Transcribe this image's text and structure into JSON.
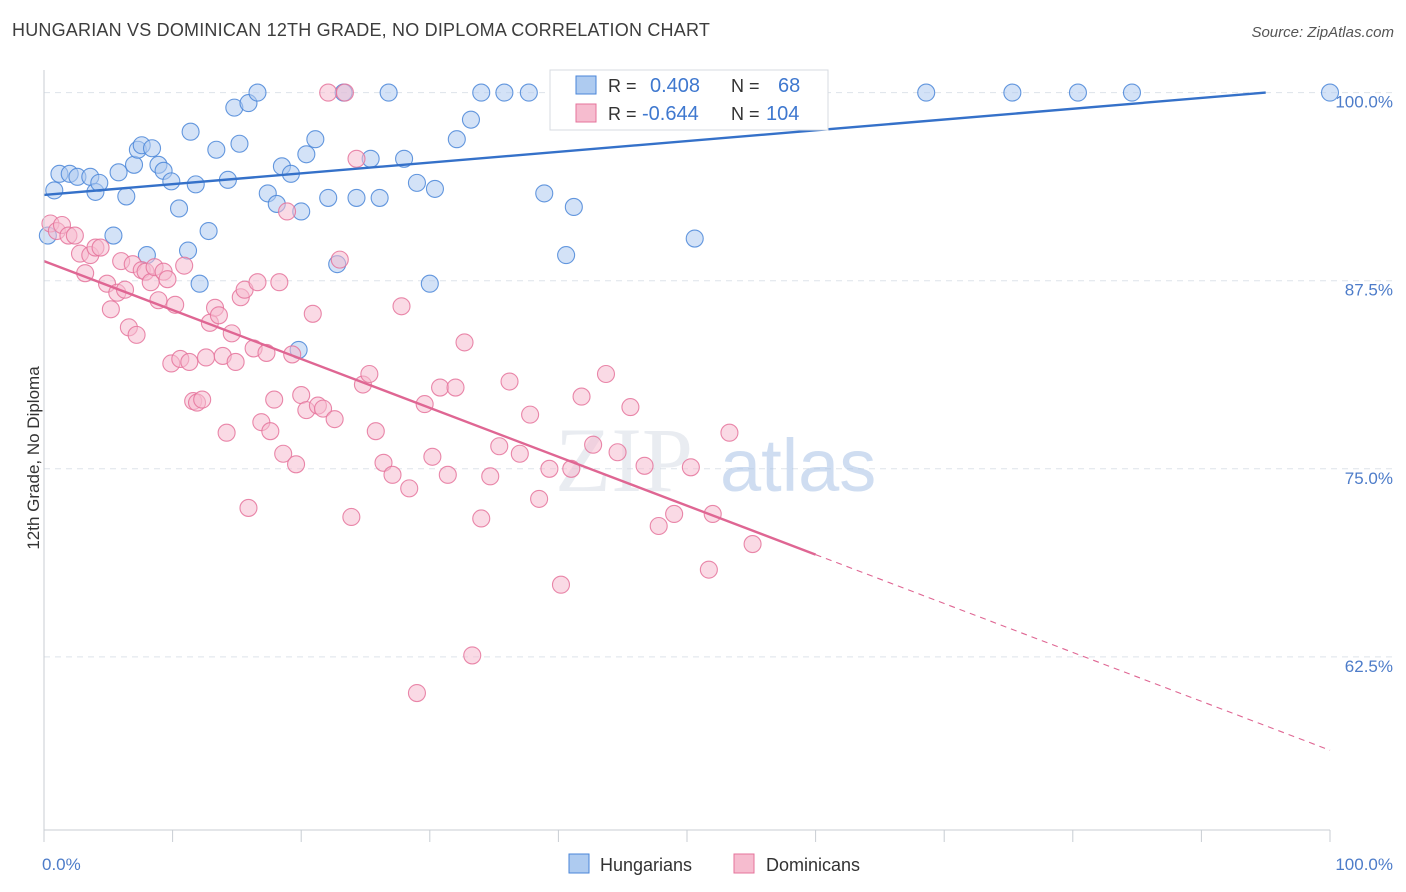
{
  "title": "HUNGARIAN VS DOMINICAN 12TH GRADE, NO DIPLOMA CORRELATION CHART",
  "source": "Source: ZipAtlas.com",
  "watermark": {
    "zip": "ZIP",
    "atlas": "atlas"
  },
  "colors": {
    "blue": "#4a86d8",
    "blue_fill": "#aecbf0",
    "blue_line": "#3571c9",
    "pink": "#e5739b",
    "pink_fill": "#f6bccf",
    "pink_line": "#df6693",
    "axis_label": "#4d7cc9",
    "grid": "#dde3ea"
  },
  "stats": [
    {
      "r_label": "R =",
      "r_value": "0.408",
      "n_label": "N =",
      "n_value": "68"
    },
    {
      "r_label": "R =",
      "r_value": "-0.644",
      "n_label": "N =",
      "n_value": "104"
    }
  ],
  "chart_data": {
    "type": "scatter",
    "title": "HUNGARIAN VS DOMINICAN 12TH GRADE, NO DIPLOMA CORRELATION CHART",
    "xlabel": "",
    "ylabel": "12th Grade, No Diploma",
    "xlim": [
      0,
      100
    ],
    "ylim": [
      51,
      101.5
    ],
    "x_tick_labels": [
      "0.0%",
      "100.0%"
    ],
    "y_ticks": [
      100.0,
      87.5,
      75.0,
      62.5
    ],
    "y_tick_labels": [
      "100.0%",
      "87.5%",
      "75.0%",
      "62.5%"
    ],
    "grid": true,
    "legend": "bottom-center",
    "series": [
      {
        "name": "Hungarians",
        "color": "#4a86d8",
        "trend": {
          "x": [
            0,
            95
          ],
          "y": [
            93.2,
            100.0
          ],
          "dashed_to": null
        },
        "points": [
          [
            0.8,
            93.5
          ],
          [
            1.2,
            94.6
          ],
          [
            2.0,
            94.6
          ],
          [
            2.6,
            94.4
          ],
          [
            3.6,
            94.4
          ],
          [
            4.0,
            93.4
          ],
          [
            4.3,
            94.0
          ],
          [
            5.4,
            90.5
          ],
          [
            5.8,
            94.7
          ],
          [
            6.4,
            93.1
          ],
          [
            7.0,
            95.2
          ],
          [
            7.3,
            96.2
          ],
          [
            7.6,
            96.5
          ],
          [
            8.0,
            89.2
          ],
          [
            8.4,
            96.3
          ],
          [
            8.9,
            95.2
          ],
          [
            9.3,
            94.8
          ],
          [
            9.9,
            94.1
          ],
          [
            10.5,
            92.3
          ],
          [
            11.2,
            89.5
          ],
          [
            11.4,
            97.4
          ],
          [
            11.8,
            93.9
          ],
          [
            12.1,
            87.3
          ],
          [
            12.8,
            90.8
          ],
          [
            13.4,
            96.2
          ],
          [
            14.3,
            94.2
          ],
          [
            14.8,
            99.0
          ],
          [
            15.2,
            96.6
          ],
          [
            15.9,
            99.3
          ],
          [
            16.6,
            100.0
          ],
          [
            17.4,
            93.3
          ],
          [
            18.1,
            92.6
          ],
          [
            18.5,
            95.1
          ],
          [
            19.2,
            94.6
          ],
          [
            19.8,
            82.9
          ],
          [
            20.0,
            92.1
          ],
          [
            20.4,
            95.9
          ],
          [
            21.1,
            96.9
          ],
          [
            22.1,
            93.0
          ],
          [
            22.8,
            88.6
          ],
          [
            23.3,
            100.0
          ],
          [
            24.3,
            93.0
          ],
          [
            25.4,
            95.6
          ],
          [
            26.1,
            93.0
          ],
          [
            26.8,
            100.0
          ],
          [
            28.0,
            95.6
          ],
          [
            29.0,
            94.0
          ],
          [
            30.0,
            87.3
          ],
          [
            30.4,
            93.6
          ],
          [
            32.1,
            96.9
          ],
          [
            33.2,
            98.2
          ],
          [
            34.0,
            100.0
          ],
          [
            35.8,
            100.0
          ],
          [
            37.7,
            100.0
          ],
          [
            38.9,
            93.3
          ],
          [
            40.6,
            89.2
          ],
          [
            41.2,
            92.4
          ],
          [
            42.9,
            100.0
          ],
          [
            45.9,
            100.0
          ],
          [
            50.6,
            90.3
          ],
          [
            53.6,
            100.0
          ],
          [
            57.3,
            100.0
          ],
          [
            68.6,
            100.0
          ],
          [
            75.3,
            100.0
          ],
          [
            80.4,
            100.0
          ],
          [
            84.6,
            100.0
          ],
          [
            100.0,
            100.0
          ],
          [
            0.3,
            90.5
          ]
        ]
      },
      {
        "name": "Dominicans",
        "color": "#e5739b",
        "trend": {
          "x": [
            0,
            60
          ],
          "y": [
            88.8,
            69.3
          ],
          "dashed_to": [
            100,
            56.3
          ]
        },
        "points": [
          [
            0.5,
            91.3
          ],
          [
            1.0,
            90.8
          ],
          [
            1.4,
            91.2
          ],
          [
            1.9,
            90.5
          ],
          [
            2.4,
            90.5
          ],
          [
            2.8,
            89.3
          ],
          [
            3.2,
            88.0
          ],
          [
            3.6,
            89.2
          ],
          [
            4.0,
            89.7
          ],
          [
            4.4,
            89.7
          ],
          [
            4.9,
            87.3
          ],
          [
            5.2,
            85.6
          ],
          [
            5.7,
            86.7
          ],
          [
            6.0,
            88.8
          ],
          [
            6.3,
            86.9
          ],
          [
            6.6,
            84.4
          ],
          [
            6.9,
            88.6
          ],
          [
            7.2,
            83.9
          ],
          [
            7.6,
            88.2
          ],
          [
            7.9,
            88.1
          ],
          [
            8.3,
            87.4
          ],
          [
            8.6,
            88.4
          ],
          [
            8.9,
            86.2
          ],
          [
            9.3,
            88.1
          ],
          [
            9.6,
            87.6
          ],
          [
            9.9,
            82.0
          ],
          [
            10.2,
            85.9
          ],
          [
            10.6,
            82.3
          ],
          [
            10.9,
            88.5
          ],
          [
            11.3,
            82.1
          ],
          [
            11.6,
            79.5
          ],
          [
            11.9,
            79.4
          ],
          [
            12.3,
            79.6
          ],
          [
            12.6,
            82.4
          ],
          [
            12.9,
            84.7
          ],
          [
            13.3,
            85.7
          ],
          [
            13.6,
            85.2
          ],
          [
            13.9,
            82.5
          ],
          [
            14.2,
            77.4
          ],
          [
            14.6,
            84.0
          ],
          [
            14.9,
            82.1
          ],
          [
            15.3,
            86.4
          ],
          [
            15.6,
            86.9
          ],
          [
            15.9,
            72.4
          ],
          [
            16.3,
            83.0
          ],
          [
            16.6,
            87.4
          ],
          [
            16.9,
            78.1
          ],
          [
            17.3,
            82.7
          ],
          [
            17.6,
            77.5
          ],
          [
            17.9,
            79.6
          ],
          [
            18.3,
            87.4
          ],
          [
            18.6,
            76.0
          ],
          [
            18.9,
            92.1
          ],
          [
            19.3,
            82.6
          ],
          [
            19.6,
            75.3
          ],
          [
            20.0,
            79.9
          ],
          [
            20.4,
            78.9
          ],
          [
            20.9,
            85.3
          ],
          [
            21.3,
            79.2
          ],
          [
            21.7,
            79.0
          ],
          [
            22.1,
            100.0
          ],
          [
            22.6,
            78.3
          ],
          [
            23.0,
            88.9
          ],
          [
            23.4,
            100.0
          ],
          [
            23.9,
            71.8
          ],
          [
            24.3,
            95.6
          ],
          [
            24.8,
            80.6
          ],
          [
            25.3,
            81.3
          ],
          [
            25.8,
            77.5
          ],
          [
            26.4,
            75.4
          ],
          [
            27.1,
            74.6
          ],
          [
            27.8,
            85.8
          ],
          [
            28.4,
            73.7
          ],
          [
            29.0,
            60.1
          ],
          [
            29.6,
            79.3
          ],
          [
            30.2,
            75.8
          ],
          [
            30.8,
            80.4
          ],
          [
            31.4,
            74.6
          ],
          [
            32.0,
            80.4
          ],
          [
            32.7,
            83.4
          ],
          [
            33.3,
            62.6
          ],
          [
            34.0,
            71.7
          ],
          [
            34.7,
            74.5
          ],
          [
            35.4,
            76.5
          ],
          [
            36.2,
            80.8
          ],
          [
            37.0,
            76.0
          ],
          [
            37.8,
            78.6
          ],
          [
            38.5,
            73.0
          ],
          [
            39.3,
            75.0
          ],
          [
            40.2,
            67.3
          ],
          [
            41.0,
            75.0
          ],
          [
            41.8,
            79.8
          ],
          [
            42.7,
            76.6
          ],
          [
            43.7,
            81.3
          ],
          [
            44.6,
            76.1
          ],
          [
            45.6,
            79.1
          ],
          [
            46.7,
            75.2
          ],
          [
            47.8,
            71.2
          ],
          [
            49.0,
            72.0
          ],
          [
            50.3,
            75.1
          ],
          [
            51.7,
            68.3
          ],
          [
            53.3,
            77.4
          ],
          [
            55.1,
            70.0
          ],
          [
            52.0,
            72.0
          ]
        ]
      }
    ]
  }
}
